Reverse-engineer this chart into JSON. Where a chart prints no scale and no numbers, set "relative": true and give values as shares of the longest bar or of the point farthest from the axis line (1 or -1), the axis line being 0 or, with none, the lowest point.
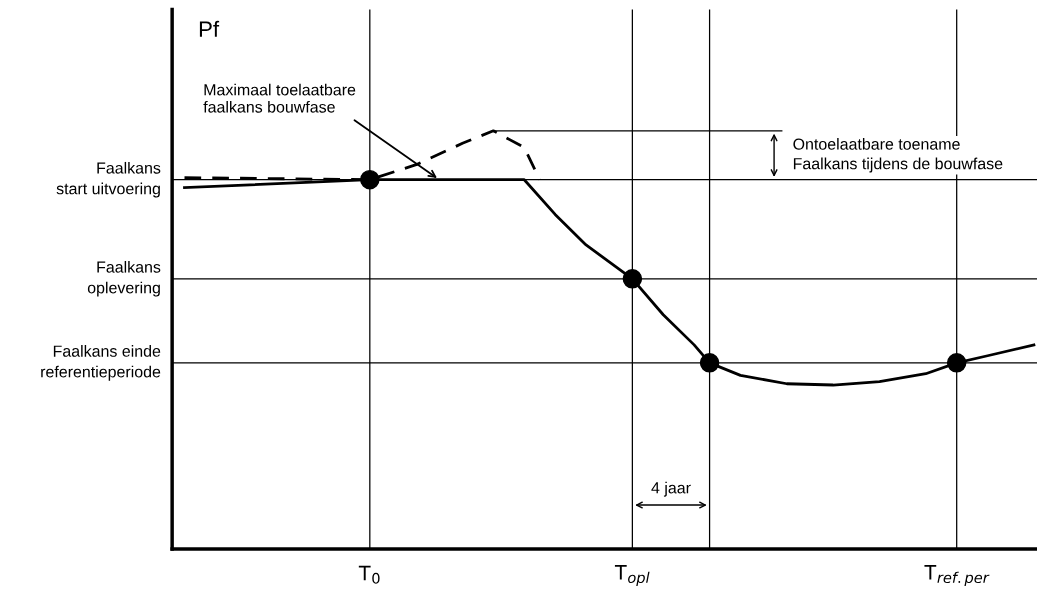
{
  "chart_data": {
    "type": "line",
    "relative": true,
    "ylabel": "Pf",
    "categories": [
      null,
      null,
      null,
      null,
      null,
      null,
      null,
      null,
      null,
      null,
      null,
      null,
      "T$_{0}$",
      null,
      null,
      null,
      null,
      null,
      null,
      null,
      null,
      null,
      null,
      null,
      null,
      null,
      null,
      null,
      null,
      "T$_{opl}$",
      null,
      null,
      null,
      null,
      null,
      null,
      null,
      null,
      null,
      null,
      null,
      null,
      null,
      null,
      null,
      null,
      null,
      null,
      null,
      null,
      "T$_{ref.per}$",
      null,
      null,
      null,
      null,
      null
    ],
    "tick_labels": "x",
    "legend": false,
    "grid": "x",
    "series": [
      {
        "color": "#000000",
        "line_style": "solid",
        "marker": "none",
        "values": [
          0.864,
          null,
          null,
          null,
          null,
          null,
          null,
          null,
          null,
          null,
          null,
          null,
          0.883,
          null,
          null,
          null,
          null,
          null,
          null,
          null,
          null,
          null,
          0.883,
          null,
          0.8,
          null,
          0.727,
          null,
          null,
          0.646,
          null,
          0.56,
          null,
          0.488,
          0.445,
          null,
          0.415,
          null,
          null,
          0.395,
          null,
          null,
          0.392,
          null,
          null,
          0.4,
          null,
          null,
          0.419,
          null,
          0.445,
          null,
          0.462,
          null,
          null,
          0.488
        ]
      },
      {
        "type": "line",
        "color": "#000000",
        "line_style": "dashed",
        "marker": "none",
        "values": [
          0.888,
          null,
          null,
          null,
          null,
          null,
          null,
          null,
          null,
          null,
          null,
          null,
          0.883,
          null,
          null,
          0.919,
          null,
          null,
          0.97,
          null,
          1.0,
          null,
          0.96,
          0.883,
          null,
          null,
          null,
          null,
          null,
          null,
          null,
          null,
          null,
          null,
          null,
          null,
          null,
          null,
          null,
          null,
          null,
          null,
          null,
          null,
          null,
          null,
          null,
          null,
          null,
          null,
          null,
          null,
          null,
          null,
          null,
          null
        ]
      },
      {
        "type": "scatter",
        "color": "#000000",
        "marker": "circle",
        "values": [
          null,
          null,
          null,
          null,
          null,
          null,
          null,
          null,
          null,
          null,
          null,
          null,
          0.883,
          null,
          null,
          null,
          null,
          null,
          null,
          null,
          null,
          null,
          null,
          null,
          null,
          null,
          null,
          null,
          null,
          0.646,
          null,
          null,
          null,
          null,
          0.445,
          null,
          null,
          null,
          null,
          null,
          null,
          null,
          null,
          null,
          null,
          null,
          null,
          null,
          null,
          null,
          0.445,
          null,
          null,
          null,
          null,
          null
        ]
      }
    ],
    "ref_lines": [
      {
        "axis": "y",
        "value": 0.883,
        "label": "Faalkans\nstart uitvoering"
      },
      {
        "axis": "y",
        "value": 0.646,
        "label": "Faalkans\noplevering"
      },
      {
        "axis": "y",
        "value": 0.445,
        "label": "Faalkans einde\nreferentieperiode"
      }
    ],
    "annotations": [
      "Maximaal toelaatbare\nfaalkans bouwfase",
      "Ontoelaatbare toename\nFaalkans tijdens de bouwfase",
      "4 jaar"
    ]
  }
}
